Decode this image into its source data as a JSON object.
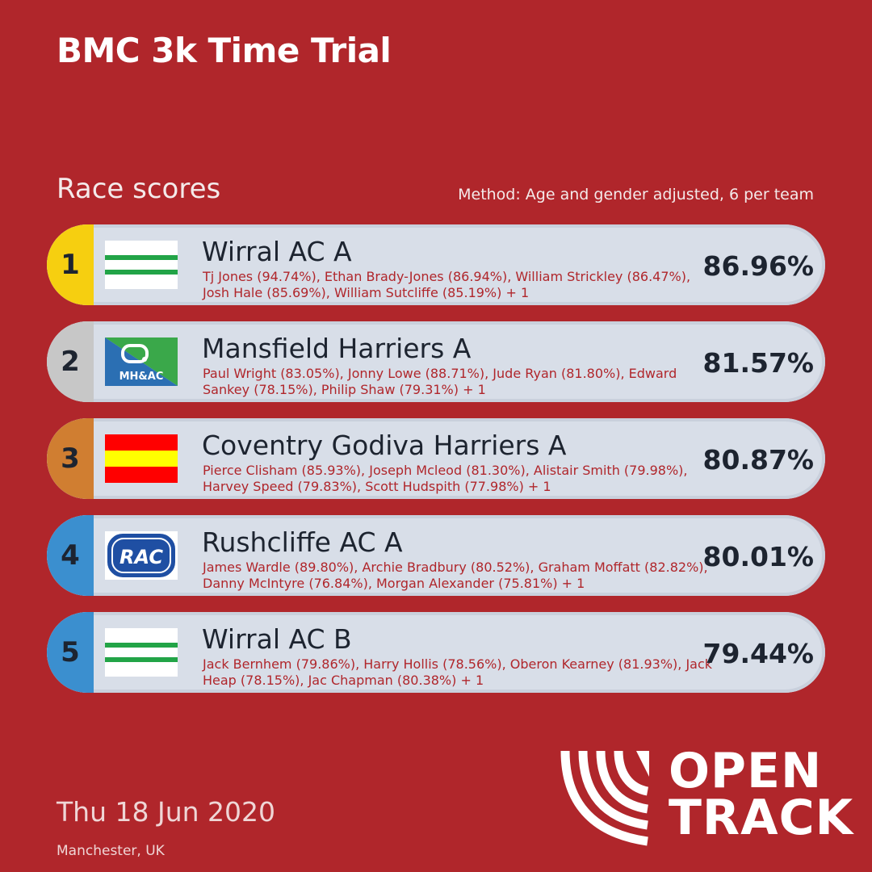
{
  "header": {
    "title": "BMC 3k Time Trial"
  },
  "section": {
    "title": "Race scores",
    "method": "Method: Age and gender adjusted, 6 per team"
  },
  "colors": {
    "background": "#b0262b",
    "gold": "#f6cf10",
    "silver": "#c7c7c7",
    "bronze": "#d07e31",
    "blue": "#3b8fcf",
    "row_bg": "#d8dee8"
  },
  "teams": [
    {
      "rank": "1",
      "name": "Wirral AC A",
      "members": "Tj Jones (94.74%), Ethan Brady-Jones (86.94%), William Strickley (86.47%), Josh Hale (85.69%), William Sutcliffe (85.19%) + 1",
      "score": "86.96%",
      "badge": "wirral-flag-icon"
    },
    {
      "rank": "2",
      "name": "Mansfield Harriers A",
      "members": "Paul Wright (83.05%), Jonny Lowe (88.71%), Jude Ryan (81.80%), Edward Sankey (78.15%), Philip Shaw (79.31%) + 1",
      "score": "81.57%",
      "badge": "mansfield-logo-icon",
      "badge_text": "MH&AC"
    },
    {
      "rank": "3",
      "name": "Coventry Godiva Harriers A",
      "members": "Pierce Clisham (85.93%), Joseph Mcleod (81.30%), Alistair Smith (79.98%), Harvey Speed (79.83%), Scott Hudspith (77.98%) + 1",
      "score": "80.87%",
      "badge": "coventry-flag-icon"
    },
    {
      "rank": "4",
      "name": "Rushcliffe AC A",
      "members": "James Wardle (89.80%), Archie Bradbury (80.52%), Graham Moffatt (82.82%), Danny McIntyre (76.84%), Morgan Alexander (75.81%) + 1",
      "score": "80.01%",
      "badge": "rushcliffe-logo-icon",
      "badge_text": "RAC"
    },
    {
      "rank": "5",
      "name": "Wirral AC B",
      "members": "Jack Bernhem (79.86%), Harry Hollis (78.56%), Oberon Kearney (81.93%), Jack Heap (78.15%), Jac Chapman (80.38%) + 1",
      "score": "79.44%",
      "badge": "wirral-flag-icon"
    }
  ],
  "footer": {
    "date": "Thu 18 Jun 2020",
    "location": "Manchester, UK",
    "logo_line1": "OPEN",
    "logo_line2": "TRACK"
  }
}
